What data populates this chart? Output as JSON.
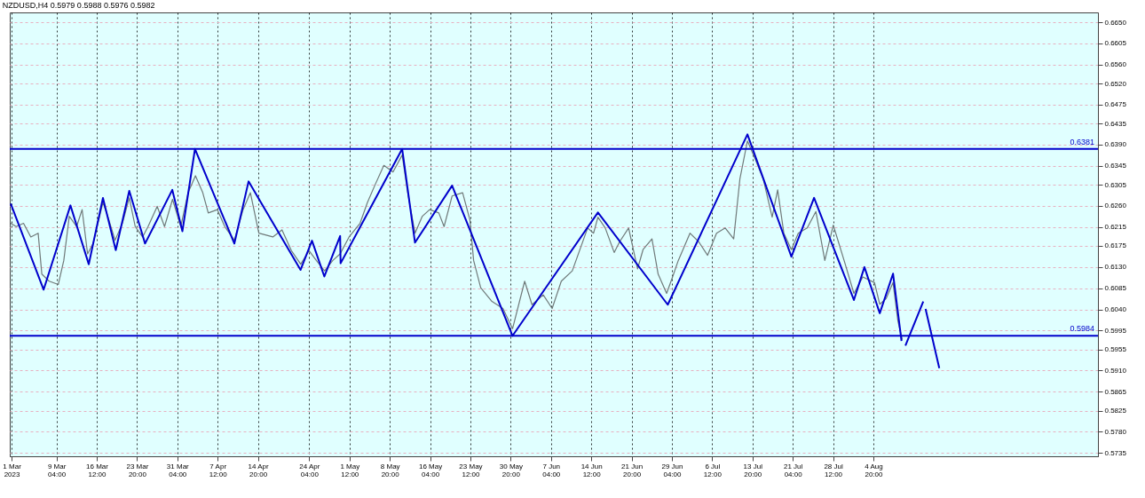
{
  "chart_data": {
    "type": "line",
    "title": "NZDUSD,H4  0.5979 0.5988 0.5976 0.5982",
    "xlim": [
      "2023-02-28T16:00",
      "2023-09-14T17:00"
    ],
    "xticks": [
      {
        "value": "2023-03-01",
        "label": "1 Mar 2023"
      },
      {
        "value": "2023-03-09T04:00",
        "label": "9 Mar 04:00"
      },
      {
        "value": "2023-03-16T12:00",
        "label": "16 Mar 12:00"
      },
      {
        "value": "2023-03-23T20:00",
        "label": "23 Mar 20:00"
      },
      {
        "value": "2023-03-31T04:00",
        "label": "31 Mar 04:00"
      },
      {
        "value": "2023-04-07T12:00",
        "label": "7 Apr 12:00"
      },
      {
        "value": "2023-04-14T20:00",
        "label": "14 Apr 20:00"
      },
      {
        "value": "2023-04-24T04:00",
        "label": "24 Apr 04:00"
      },
      {
        "value": "2023-05-01T12:00",
        "label": "1 May 12:00"
      },
      {
        "value": "2023-05-08T20:00",
        "label": "8 May 20:00"
      },
      {
        "value": "2023-05-16T04:00",
        "label": "16 May 04:00"
      },
      {
        "value": "2023-05-23T12:00",
        "label": "23 May 12:00"
      },
      {
        "value": "2023-05-30T20:00",
        "label": "30 May 20:00"
      },
      {
        "value": "2023-06-07T04:00",
        "label": "7 Jun 04:00"
      },
      {
        "value": "2023-06-14T12:00",
        "label": "14 Jun 12:00"
      },
      {
        "value": "2023-06-21T20:00",
        "label": "21 Jun 20:00"
      },
      {
        "value": "2023-06-29T04:00",
        "label": "29 Jun 04:00"
      },
      {
        "value": "2023-07-06T12:00",
        "label": "6 Jul 12:00"
      },
      {
        "value": "2023-07-13T20:00",
        "label": "13 Jul 20:00"
      },
      {
        "value": "2023-07-21T04:00",
        "label": "21 Jul 04:00"
      },
      {
        "value": "2023-07-28T12:00",
        "label": "28 Jul 12:00"
      },
      {
        "value": "2023-08-04T20:00",
        "label": "4 Aug 20:00"
      }
    ],
    "ylim": [
      0.5728,
      0.6671
    ],
    "yticks": [
      {
        "value": 0.665,
        "label": "0.6650"
      },
      0.6605,
      {
        "value": 0.656,
        "label": "0.6560"
      },
      {
        "value": 0.652,
        "label": "0.6520"
      },
      0.6475,
      0.6435,
      {
        "value": 0.639,
        "label": "0.6390"
      },
      0.6345,
      0.6305,
      {
        "value": 0.626,
        "label": "0.6260"
      },
      0.6215,
      0.6175,
      {
        "value": 0.613,
        "label": "0.6130"
      },
      0.6085,
      {
        "value": 0.604,
        "label": "0.6040"
      },
      0.5995,
      0.5955,
      {
        "value": 0.591,
        "label": "0.5910"
      },
      0.5865,
      0.5825,
      {
        "value": 0.578,
        "label": "0.5780"
      },
      0.5735
    ],
    "grid": true,
    "ref_lines": [
      {
        "axis": "y",
        "value": 0.6381,
        "label": "0.6381",
        "color": "#0000cc"
      },
      {
        "axis": "y",
        "value": 0.5984,
        "label": "0.5984",
        "color": "#0000cc"
      }
    ],
    "series": [
      {
        "color": "#707a7a",
        "x": [
          "2023-02-28T20:00",
          "2023-03-01T20:00",
          "2023-03-03T04:00",
          "2023-03-04T12:00",
          "2023-03-05T20:00",
          "2023-03-06T12:00",
          "2023-03-07T20:00",
          "2023-03-09T12:00",
          "2023-03-10T12:00",
          "2023-03-11T12:00",
          "2023-03-12T20:00",
          "2023-03-13T20:00",
          "2023-03-14T20:00",
          "2023-03-15T20:00",
          "2023-03-17T15:00",
          "2023-03-18T12:00",
          "2023-03-19T20:00",
          "2023-03-21T04:00",
          "2023-03-22T10:00",
          "2023-03-23T12:00",
          "2023-03-24T20:00",
          "2023-03-25T20:00",
          "2023-03-27T12:00",
          "2023-03-28T20:00",
          "2023-03-30T07:00",
          "2023-03-31T19:00",
          "2023-04-02T03:00",
          "2023-04-03T11:00",
          "2023-04-04T19:00",
          "2023-04-05T19:00",
          "2023-04-07T11:00",
          "2023-04-08T19:00",
          "2023-04-10T13:00",
          "2023-04-12T03:00",
          "2023-04-13T11:00",
          "2023-04-15T00:00",
          "2023-04-17T13:00",
          "2023-04-19T05:00",
          "2023-04-20T22:00",
          "2023-04-22T15:00",
          "2023-04-24T03:00",
          "2023-04-25T11:00",
          "2023-04-26T23:00",
          "2023-04-28T11:00",
          "2023-04-29T19:00",
          "2023-05-01T10:00",
          "2023-05-03T10:00",
          "2023-05-04T18:00",
          "2023-05-06T02:00",
          "2023-05-07T18:00",
          "2023-05-09T10:00",
          "2023-05-11T02:00",
          "2023-05-12T02:00",
          "2023-05-13T10:00",
          "2023-05-14T18:00",
          "2023-05-16T02:00",
          "2023-05-17T18:00",
          "2023-05-18T17:00",
          "2023-05-20T04:00",
          "2023-05-22T02:00",
          "2023-05-23T10:00",
          "2023-05-24T02:00",
          "2023-05-25T09:00",
          "2023-05-27T10:00",
          "2023-05-29T10:00",
          "2023-05-31T04:00",
          "2023-06-02T09:00",
          "2023-06-03T17:00",
          "2023-06-05T18:00",
          "2023-06-07T09:00",
          "2023-06-09T01:00",
          "2023-06-11T01:00",
          "2023-06-13T20:00",
          "2023-06-14T22:00",
          "2023-06-15T17:00",
          "2023-06-17T01:00",
          "2023-06-18T16:00",
          "2023-06-19T16:00",
          "2023-06-21T07:00",
          "2023-06-22T22:00",
          "2023-06-23T22:00",
          "2023-06-25T13:00",
          "2023-06-26T16:00",
          "2023-06-28T05:00",
          "2023-06-29T07:00",
          "2023-06-30T08:00",
          "2023-07-02T11:00",
          "2023-07-04T01:00",
          "2023-07-05T16:00",
          "2023-07-07T07:00",
          "2023-07-08T21:00",
          "2023-07-10T10:00",
          "2023-07-11T13:00",
          "2023-07-12T22:00",
          "2023-07-14T04:00",
          "2023-07-15T19:00",
          "2023-07-17T10:00",
          "2023-07-18T10:00",
          "2023-07-19T13:00",
          "2023-07-20T22:00",
          "2023-07-22T04:00",
          "2023-07-23T19:00",
          "2023-07-25T09:00",
          "2023-07-27T00:00",
          "2023-07-28T13:00",
          "2023-07-30T16:00",
          "2023-08-01T07:00",
          "2023-08-02T22:00",
          "2023-08-05T01:00",
          "2023-08-06T00:00",
          "2023-08-07T04:00",
          "2023-08-08T10:00",
          "2023-08-09T07:00",
          "2023-08-10T02:00"
        ],
        "values": [
          0.6223,
          0.6216,
          0.6223,
          0.6194,
          0.6202,
          0.6115,
          0.61,
          0.6093,
          0.6144,
          0.6238,
          0.6216,
          0.6252,
          0.6158,
          0.618,
          0.6267,
          0.6238,
          0.6187,
          0.6223,
          0.6277,
          0.6216,
          0.6194,
          0.6216,
          0.6259,
          0.6216,
          0.6274,
          0.6216,
          0.6288,
          0.6324,
          0.6288,
          0.6245,
          0.6252,
          0.6216,
          0.6187,
          0.6252,
          0.6288,
          0.6202,
          0.6194,
          0.6209,
          0.6165,
          0.6136,
          0.6165,
          0.6144,
          0.6122,
          0.6144,
          0.6158,
          0.6194,
          0.6223,
          0.6267,
          0.6303,
          0.6346,
          0.6332,
          0.6368,
          0.6288,
          0.6202,
          0.6238,
          0.6252,
          0.6245,
          0.6216,
          0.6281,
          0.6288,
          0.623,
          0.6144,
          0.6086,
          0.6057,
          0.6042,
          0.5999,
          0.61,
          0.605,
          0.6071,
          0.6042,
          0.61,
          0.6122,
          0.6213,
          0.6202,
          0.6236,
          0.6213,
          0.6161,
          0.6184,
          0.6213,
          0.6126,
          0.6167,
          0.619,
          0.6115,
          0.6074,
          0.6109,
          0.6144,
          0.6202,
          0.6184,
          0.6155,
          0.6202,
          0.6213,
          0.619,
          0.6317,
          0.6398,
          0.6364,
          0.6317,
          0.6236,
          0.6294,
          0.6202,
          0.6167,
          0.6202,
          0.6213,
          0.6248,
          0.6144,
          0.6219,
          0.6138,
          0.6074,
          0.6109,
          0.6097,
          0.6051,
          0.6063,
          0.6097,
          0.6016,
          0.5976
        ]
      },
      {
        "color": "#0000cc",
        "x": [
          "2023-02-28T20:00",
          "2023-03-06T20:00",
          "2023-03-11T17:00",
          "2023-03-15T01:00",
          "2023-03-17T15:00",
          "2023-03-19T23:00",
          "2023-03-22T10:00",
          "2023-03-25T07:00",
          "2023-03-30T06:00",
          "2023-04-01T02:00",
          "2023-04-03T09:00",
          "2023-04-10T13:00",
          "2023-04-13T03:00",
          "2023-04-22T14:00",
          "2023-04-24T16:00",
          "2023-04-26T22:00",
          "2023-04-29T19:00",
          "2023-04-29T21:00",
          "2023-05-11T02:00",
          "2023-05-13T10:00",
          "2023-05-20T04:00",
          "2023-05-31T04:00",
          "2023-06-15T17:00",
          "2023-06-28T10:00",
          "2023-07-12T22:00",
          "2023-07-20T22:00",
          "2023-07-25T01:00",
          "2023-08-01T07:00",
          "2023-08-03T05:00",
          "2023-08-06T00:00",
          "2023-08-08T10:00",
          "2023-08-09T23:00"
        ],
        "values": [
          0.6265,
          0.6082,
          0.6261,
          0.6136,
          0.6277,
          0.6166,
          0.6292,
          0.618,
          0.6294,
          0.6206,
          0.6381,
          0.618,
          0.6312,
          0.6124,
          0.6186,
          0.611,
          0.6196,
          0.6138,
          0.6381,
          0.6182,
          0.6303,
          0.5984,
          0.6246,
          0.605,
          0.6412,
          0.6152,
          0.6277,
          0.606,
          0.613,
          0.6032,
          0.6116,
          0.5973
        ]
      },
      {
        "color": "#0000cc",
        "x": [
          "2023-08-10T16:00",
          "2023-08-13T22:00",
          "2023-08-14T03:00",
          "2023-08-14T08:00",
          "2023-08-16T20:00"
        ],
        "values": [
          0.5963,
          0.6057,
          null,
          0.6041,
          0.5915
        ]
      }
    ]
  }
}
